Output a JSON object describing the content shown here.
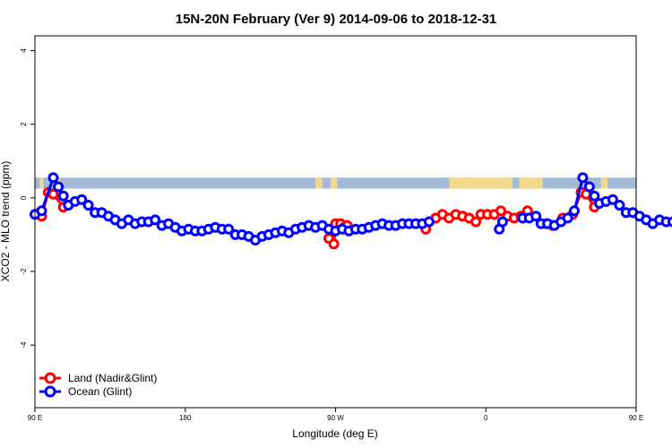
{
  "chart_data": {
    "type": "line",
    "title": "15N-20N February (Ver 9)   2014-09-06 to 2018-12-31",
    "xlabel": "Longitude (deg E)",
    "ylabel": "XCO2 - MLO trend (ppm)",
    "xlim": [
      90,
      450
    ],
    "ylim": [
      -5.7,
      4.4
    ],
    "x_ticks": [
      {
        "value": 90,
        "label": "90 E"
      },
      {
        "value": 180,
        "label": "180"
      },
      {
        "value": 270,
        "label": "90 W"
      },
      {
        "value": 360,
        "label": "0"
      },
      {
        "value": 450,
        "label": "90 E"
      },
      {
        "value": 540,
        "label": "180"
      }
    ],
    "y_ticks": [
      4,
      2,
      0,
      -2,
      -4
    ],
    "legend_position": "bottom-left",
    "background_band": {
      "y_range": [
        0.25,
        0.55
      ],
      "ocean_color": "#a2b9d8",
      "land_color": "#f5d98a",
      "land_x_ranges": [
        [
          93,
          95
        ],
        [
          102,
          105
        ],
        [
          258,
          262
        ],
        [
          267,
          271
        ],
        [
          338,
          352
        ],
        [
          352,
          376
        ],
        [
          380,
          394
        ],
        [
          429,
          433
        ],
        [
          450,
          463
        ],
        [
          472,
          474
        ]
      ]
    },
    "series": [
      {
        "name": "Land (Nadir&Glint)",
        "color": "#ff0000",
        "segments": [
          [
            [
              94,
              -0.5
            ],
            [
              98,
              0.15
            ],
            [
              101,
              0.1
            ],
            [
              107,
              -0.25
            ]
          ],
          [
            [
              266,
              -1.1
            ],
            [
              269,
              -1.25
            ],
            [
              270,
              -0.7
            ],
            [
              273,
              -0.7
            ],
            [
              275,
              -0.8
            ],
            [
              277,
              -0.75
            ]
          ],
          [
            [
              324,
              -0.85
            ]
          ],
          [
            [
              330,
              -0.55
            ],
            [
              334,
              -0.45
            ],
            [
              338,
              -0.55
            ],
            [
              342,
              -0.45
            ],
            [
              346,
              -0.5
            ],
            [
              350,
              -0.55
            ],
            [
              354,
              -0.65
            ],
            [
              357,
              -0.45
            ],
            [
              361,
              -0.45
            ],
            [
              365,
              -0.45
            ],
            [
              369,
              -0.35
            ],
            [
              373,
              -0.5
            ],
            [
              377,
              -0.55
            ],
            [
              381,
              -0.5
            ],
            [
              385,
              -0.35
            ]
          ],
          [
            [
              396,
              -0.7
            ],
            [
              400,
              -0.75
            ],
            [
              406,
              -0.55
            ],
            [
              412,
              -0.45
            ],
            [
              417,
              0.15
            ],
            [
              420,
              0.1
            ],
            [
              425,
              -0.25
            ]
          ]
        ]
      },
      {
        "name": "Ocean (Glint)",
        "color": "#0000ff",
        "segments": [
          [
            [
              90,
              -0.45
            ],
            [
              94,
              -0.35
            ],
            [
              101,
              0.55
            ],
            [
              104,
              0.3
            ],
            [
              107,
              0.05
            ],
            [
              110,
              -0.2
            ],
            [
              114,
              -0.1
            ],
            [
              118,
              -0.05
            ],
            [
              122,
              -0.2
            ],
            [
              126,
              -0.4
            ],
            [
              130,
              -0.4
            ],
            [
              134,
              -0.5
            ],
            [
              138,
              -0.6
            ],
            [
              142,
              -0.7
            ],
            [
              146,
              -0.6
            ],
            [
              150,
              -0.7
            ],
            [
              154,
              -0.65
            ],
            [
              158,
              -0.65
            ],
            [
              162,
              -0.6
            ],
            [
              166,
              -0.75
            ],
            [
              170,
              -0.7
            ],
            [
              174,
              -0.8
            ],
            [
              178,
              -0.9
            ],
            [
              182,
              -0.85
            ],
            [
              186,
              -0.9
            ],
            [
              190,
              -0.9
            ],
            [
              194,
              -0.85
            ],
            [
              198,
              -0.8
            ],
            [
              202,
              -0.85
            ],
            [
              206,
              -0.85
            ],
            [
              210,
              -1.0
            ],
            [
              214,
              -1.0
            ],
            [
              218,
              -1.05
            ],
            [
              222,
              -1.15
            ],
            [
              226,
              -1.05
            ],
            [
              230,
              -1.0
            ],
            [
              234,
              -0.95
            ],
            [
              238,
              -0.9
            ],
            [
              242,
              -0.95
            ],
            [
              246,
              -0.85
            ],
            [
              250,
              -0.8
            ],
            [
              254,
              -0.75
            ],
            [
              258,
              -0.8
            ],
            [
              262,
              -0.75
            ],
            [
              266,
              -0.85
            ],
            [
              270,
              -0.9
            ],
            [
              274,
              -0.85
            ],
            [
              278,
              -0.9
            ],
            [
              282,
              -0.85
            ],
            [
              286,
              -0.85
            ],
            [
              290,
              -0.8
            ],
            [
              294,
              -0.75
            ],
            [
              298,
              -0.7
            ],
            [
              302,
              -0.75
            ],
            [
              306,
              -0.75
            ],
            [
              310,
              -0.7
            ],
            [
              314,
              -0.7
            ],
            [
              318,
              -0.7
            ],
            [
              322,
              -0.7
            ],
            [
              326,
              -0.65
            ]
          ],
          [
            [
              368,
              -0.85
            ],
            [
              370,
              -0.65
            ]
          ],
          [
            [
              382,
              -0.55
            ],
            [
              386,
              -0.55
            ],
            [
              390,
              -0.5
            ],
            [
              393,
              -0.7
            ],
            [
              397,
              -0.7
            ],
            [
              401,
              -0.75
            ],
            [
              405,
              -0.65
            ],
            [
              409,
              -0.55
            ],
            [
              413,
              -0.35
            ],
            [
              418,
              0.55
            ],
            [
              422,
              0.3
            ],
            [
              425,
              0.05
            ],
            [
              428,
              -0.15
            ],
            [
              432,
              -0.1
            ],
            [
              436,
              -0.05
            ],
            [
              440,
              -0.2
            ],
            [
              444,
              -0.4
            ],
            [
              448,
              -0.4
            ],
            [
              452,
              -0.5
            ],
            [
              456,
              -0.6
            ],
            [
              460,
              -0.7
            ],
            [
              464,
              -0.6
            ],
            [
              468,
              -0.65
            ],
            [
              472,
              -0.65
            ]
          ]
        ]
      }
    ]
  }
}
